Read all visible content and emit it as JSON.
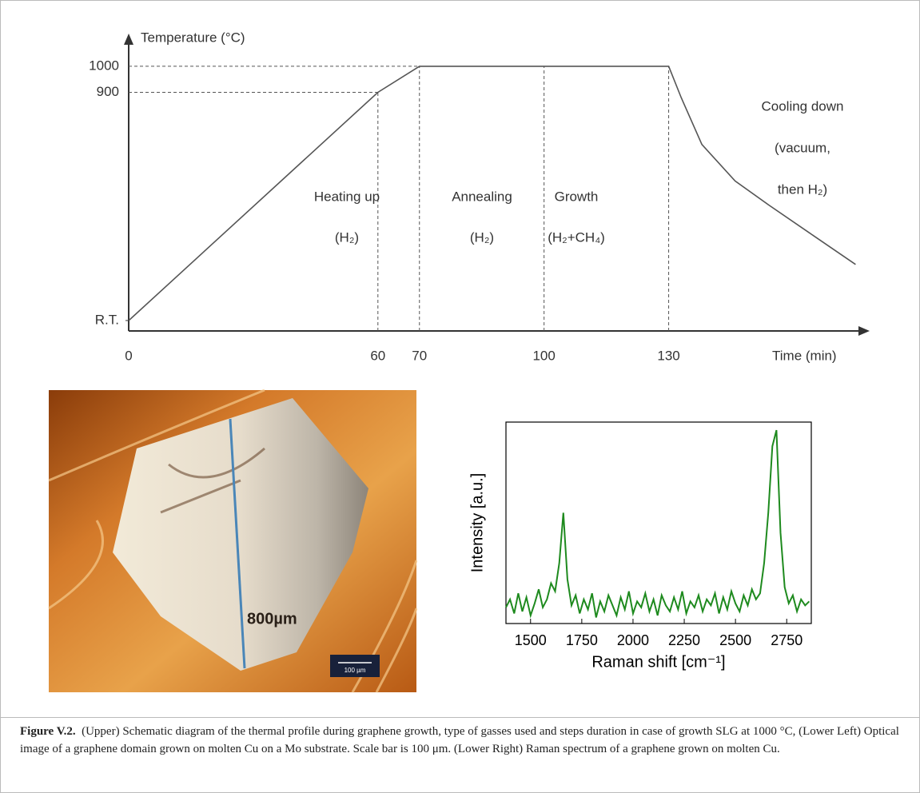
{
  "chart_data": [
    {
      "type": "line",
      "y_label": "Temperature (°C)",
      "x_label": "Time (min)",
      "x": [
        0,
        60,
        70,
        130,
        133,
        138,
        146,
        154,
        164,
        175
      ],
      "values": [
        25,
        900,
        1000,
        1000,
        880,
        700,
        560,
        469,
        360,
        240
      ],
      "color": "#555555",
      "xlim": [
        0,
        178
      ],
      "ylim": [
        -15,
        1113
      ],
      "xticks": [
        0,
        60,
        70,
        100,
        130
      ],
      "yticks": [
        {
          "value": 25,
          "label": "R.T."
        },
        900,
        1000
      ],
      "axis_arrows": true,
      "annotations": [
        "Heating up",
        "(H₂)",
        "Annealing",
        "(H₂)",
        "Growth",
        "(H₂+CH₄)",
        "Cooling down",
        "(vacuum,",
        "then H₂)"
      ]
    },
    {
      "type": "line",
      "y_label": "Intensity [a.u.]",
      "x_label": "Raman shift [cm⁻¹]",
      "x": [
        1380,
        1400,
        1420,
        1440,
        1460,
        1480,
        1500,
        1520,
        1540,
        1560,
        1580,
        1600,
        1620,
        1640,
        1660,
        1680,
        1700,
        1720,
        1740,
        1760,
        1780,
        1800,
        1820,
        1840,
        1860,
        1880,
        1900,
        1920,
        1940,
        1960,
        1980,
        2000,
        2020,
        2040,
        2060,
        2080,
        2100,
        2120,
        2140,
        2160,
        2180,
        2200,
        2220,
        2240,
        2260,
        2280,
        2300,
        2320,
        2340,
        2360,
        2380,
        2400,
        2420,
        2440,
        2460,
        2480,
        2500,
        2520,
        2540,
        2560,
        2580,
        2600,
        2620,
        2640,
        2660,
        2680,
        2700,
        2720,
        2740,
        2760,
        2780,
        2800,
        2820,
        2840,
        2860
      ],
      "values": [
        0.08,
        0.12,
        0.05,
        0.15,
        0.06,
        0.13,
        0.04,
        0.1,
        0.17,
        0.08,
        0.12,
        0.2,
        0.16,
        0.3,
        0.55,
        0.22,
        0.09,
        0.14,
        0.05,
        0.12,
        0.07,
        0.15,
        0.03,
        0.11,
        0.06,
        0.14,
        0.09,
        0.04,
        0.13,
        0.07,
        0.16,
        0.05,
        0.11,
        0.08,
        0.15,
        0.06,
        0.12,
        0.04,
        0.14,
        0.09,
        0.06,
        0.13,
        0.07,
        0.16,
        0.05,
        0.11,
        0.08,
        0.14,
        0.06,
        0.12,
        0.09,
        0.15,
        0.05,
        0.13,
        0.07,
        0.16,
        0.1,
        0.06,
        0.14,
        0.09,
        0.17,
        0.12,
        0.15,
        0.3,
        0.55,
        0.88,
        0.96,
        0.45,
        0.18,
        0.1,
        0.14,
        0.06,
        0.12,
        0.09,
        0.11
      ],
      "color": "#1e8a1e",
      "xlim": [
        1380,
        2870
      ],
      "ylim": [
        0,
        1
      ],
      "xticks": [
        1500,
        1750,
        2000,
        2250,
        2500,
        2750
      ],
      "frame": true
    }
  ],
  "image": {
    "length_label": "800µm",
    "scale_label": "100 µm"
  },
  "caption": {
    "label": "Figure V.2.",
    "text": "(Upper) Schematic diagram of the thermal profile during graphene growth, type of gasses used and steps duration in case of growth SLG at 1000 °C, (Lower Left) Optical image of a graphene domain grown on molten Cu on a Mo substrate. Scale bar is 100 μm. (Lower Right) Raman spectrum of a graphene grown on molten Cu."
  }
}
